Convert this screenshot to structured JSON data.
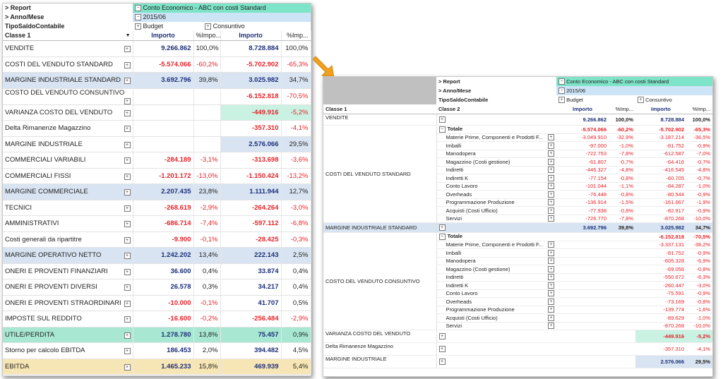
{
  "left": {
    "report_label": "> Report",
    "report_value": "Conto Economico - ABC con costi Standard",
    "anno_label": "> Anno/Mese",
    "anno_value": "2015/06",
    "tipo_label": "TipoSaldoContabile",
    "budget_label": "Budget",
    "consuntivo_label": "Consuntivo",
    "col_classe": "Classe 1",
    "col_importo": "Importo",
    "col_pct": "%Impo...",
    "col_pct2": "%Imp...",
    "rows": [
      {
        "name": "VENDITE",
        "b": "9.266.862",
        "bp": "100,0%",
        "c": "8.728.884",
        "cp": "100,0%"
      },
      {
        "name": "COSTI DEL VENDUTO STANDARD",
        "b": "-5.574.066",
        "bp": "-60,2%",
        "c": "-5.702.902",
        "cp": "-65,3%"
      },
      {
        "name": "MARGINE INDUSTRIALE STANDARD",
        "b": "3.692.796",
        "bp": "39,8%",
        "c": "3.025.982",
        "cp": "34,7%"
      },
      {
        "name": "COSTO DEL VENDUTO CONSUNTIVO",
        "b": "",
        "bp": "",
        "c": "-6.152.818",
        "cp": "-70,5%"
      },
      {
        "name": "VARIANZA COSTO DEL VENDUTO",
        "b": "",
        "bp": "",
        "c": "-449.916",
        "cp": "-5,2%"
      },
      {
        "name": "Delta Rimanenze Magazzino",
        "b": "",
        "bp": "",
        "c": "-357.310",
        "cp": "-4,1%"
      },
      {
        "name": "MARGINE INDUSTRIALE",
        "b": "",
        "bp": "",
        "c": "2.576.066",
        "cp": "29,5%"
      },
      {
        "name": "COMMERCIALI VARIABILI",
        "b": "-284.189",
        "bp": "-3,1%",
        "c": "-313.698",
        "cp": "-3,6%"
      },
      {
        "name": "COMMERCIALI FISSI",
        "b": "-1.201.172",
        "bp": "-13,0%",
        "c": "-1.150.424",
        "cp": "-13,2%"
      },
      {
        "name": "MARGINE COMMERCIALE",
        "b": "2.207.435",
        "bp": "23,8%",
        "c": "1.111.944",
        "cp": "12,7%"
      },
      {
        "name": "TECNICI",
        "b": "-268.619",
        "bp": "-2,9%",
        "c": "-264.264",
        "cp": "-3,0%"
      },
      {
        "name": "AMMINISTRATIVI",
        "b": "-686.714",
        "bp": "-7,4%",
        "c": "-597.112",
        "cp": "-6,8%"
      },
      {
        "name": "Costi generali da ripartitre",
        "b": "-9.900",
        "bp": "-0,1%",
        "c": "-28.425",
        "cp": "-0,3%"
      },
      {
        "name": "MARGINE OPERATIVO NETTO",
        "b": "1.242.202",
        "bp": "13,4%",
        "c": "222.143",
        "cp": "2,5%"
      },
      {
        "name": "ONERI E PROVENTI FINANZIARI",
        "b": "36.600",
        "bp": "0,4%",
        "c": "33.874",
        "cp": "0,4%"
      },
      {
        "name": "ONERI E PROVENTI DIVERSI",
        "b": "26.578",
        "bp": "0,3%",
        "c": "34.217",
        "cp": "0,4%"
      },
      {
        "name": "ONERI E PROVENTI STRAORDINARI",
        "b": "-10.000",
        "bp": "-0,1%",
        "c": "41.707",
        "cp": "0,5%"
      },
      {
        "name": "IMPOSTE SUL REDDITO",
        "b": "-16.600",
        "bp": "-0,2%",
        "c": "-256.484",
        "cp": "-2,9%"
      },
      {
        "name": "UTILE/PERDITA",
        "b": "1.278.780",
        "bp": "13,8%",
        "c": "75.457",
        "cp": "0,9%"
      },
      {
        "name": "Storno per calcolo EBITDA",
        "b": "186.453",
        "bp": "2,0%",
        "c": "394.482",
        "cp": "4,5%"
      },
      {
        "name": "EBITDA",
        "b": "1.465.233",
        "bp": "15,8%",
        "c": "469.939",
        "cp": "5,4%"
      }
    ]
  },
  "right": {
    "report_label": "> Report",
    "report_value": "Conto Economico - ABC con costi Standard",
    "anno_label": "> Anno/Mese",
    "anno_value": "2015/06",
    "tipo_label": "TipoSaldoContabile",
    "budget_label": "Budget",
    "consuntivo_label": "Consuntivo",
    "col_classe1": "Classe 1",
    "col_classe2": "Classe 2",
    "col_importo": "Importo",
    "col_pct": "%Imp...",
    "vendite": {
      "name": "VENDITE",
      "b": "9.266.862",
      "bp": "100,0%",
      "c": "8.728.884",
      "cp": "100,0%"
    },
    "costi_std": {
      "name": "COSTI DEL VENDUTO STANDARD",
      "total_label": "Totale",
      "total": {
        "b": "-5.574.066",
        "bp": "-60,2%",
        "c": "-5.702.902",
        "cp": "-65,3%"
      },
      "items": [
        {
          "name": "Materie Prime, Componenti e Prodotti F...",
          "b": "-3.049.910",
          "bp": "-32,9%",
          "c": "-3.187.214",
          "cp": "-36,5%"
        },
        {
          "name": "Imballi",
          "b": "-97.000",
          "bp": "-1,0%",
          "c": "-81.752",
          "cp": "-0,9%"
        },
        {
          "name": "Manodopera",
          "b": "-722.753",
          "bp": "-7,8%",
          "c": "-612.587",
          "cp": "-7,0%"
        },
        {
          "name": "Magazzino (Costi gestione)",
          "b": "-61.807",
          "bp": "-0,7%",
          "c": "-64.416",
          "cp": "-0,7%"
        },
        {
          "name": "Indiretti",
          "b": "-446.327",
          "bp": "-4,8%",
          "c": "-416.545",
          "cp": "-4,8%"
        },
        {
          "name": "Indiretti K",
          "b": "-77.154",
          "bp": "-0,8%",
          "c": "-60.705",
          "cp": "-0,7%"
        },
        {
          "name": "Conto Lavoro",
          "b": "-101.044",
          "bp": "-1,1%",
          "c": "-84.287",
          "cp": "-1,0%"
        },
        {
          "name": "Overheads",
          "b": "-76.448",
          "bp": "-0,8%",
          "c": "-80.544",
          "cp": "-0,9%"
        },
        {
          "name": "Programmazione Produzione",
          "b": "-136.914",
          "bp": "-1,5%",
          "c": "-161.667",
          "cp": "-1,9%"
        },
        {
          "name": "Acquisti (Costi Ufficio)",
          "b": "-77.938",
          "bp": "-0,8%",
          "c": "-82.917",
          "cp": "-0,9%"
        },
        {
          "name": "Servizi",
          "b": "-726.770",
          "bp": "-7,8%",
          "c": "-870.268",
          "cp": "-10,0%"
        }
      ]
    },
    "margine_std": {
      "name": "MARGINE INDUSTRIALE STANDARD",
      "b": "3.692.796",
      "bp": "39,8%",
      "c": "3.025.982",
      "cp": "34,7%"
    },
    "costo_cons": {
      "name": "COSTO DEL VENDUTO CONSUNTIVO",
      "total_label": "Totale",
      "total": {
        "c": "-6.152.818",
        "cp": "-70,5%"
      },
      "items": [
        {
          "name": "Materie Prime, Componenti e Prodotti F...",
          "c": "-3.337.131",
          "cp": "-38,2%"
        },
        {
          "name": "Imballi",
          "c": "-81.752",
          "cp": "-0,9%"
        },
        {
          "name": "Manodopera",
          "c": "-605.328",
          "cp": "-6,9%"
        },
        {
          "name": "Magazzino (Costi gestione)",
          "c": "-69.056",
          "cp": "-0,8%"
        },
        {
          "name": "Indiretti",
          "c": "-550.672",
          "cp": "-6,3%"
        },
        {
          "name": "Indiretti K",
          "c": "-260.447",
          "cp": "-3,0%"
        },
        {
          "name": "Conto Lavoro",
          "c": "-75.591",
          "cp": "-0,9%"
        },
        {
          "name": "Overheads",
          "c": "-73.169",
          "cp": "-0,8%"
        },
        {
          "name": "Programmazione Produzione",
          "c": "-139.774",
          "cp": "-1,6%"
        },
        {
          "name": "Acquisti (Costi Ufficio)",
          "c": "-89.629",
          "cp": "-1,0%"
        },
        {
          "name": "Servizi",
          "c": "-870.268",
          "cp": "-10,0%"
        }
      ]
    },
    "varianza": {
      "name": "VARIANZA COSTO DEL VENDUTO",
      "c": "-449.916",
      "cp": "-5,2%"
    },
    "delta": {
      "name": "Delta Rimanenze Magazzino",
      "c": "-357.310",
      "cp": "-4,1%"
    },
    "margine_ind": {
      "name": "MARGINE INDUSTRIALE",
      "c": "2.576.066",
      "cp": "29,5%"
    }
  },
  "colors": {
    "accent_arrow": "#f0a020",
    "teal": "#7ee4c8",
    "light_blue": "#cde3f6",
    "negative": "#e6232a",
    "positive": "#1c2f7a"
  },
  "icons": {
    "expand": "plus-box-icon",
    "collapse": "minus-box-icon",
    "arrow": "orange-arrow-icon"
  }
}
